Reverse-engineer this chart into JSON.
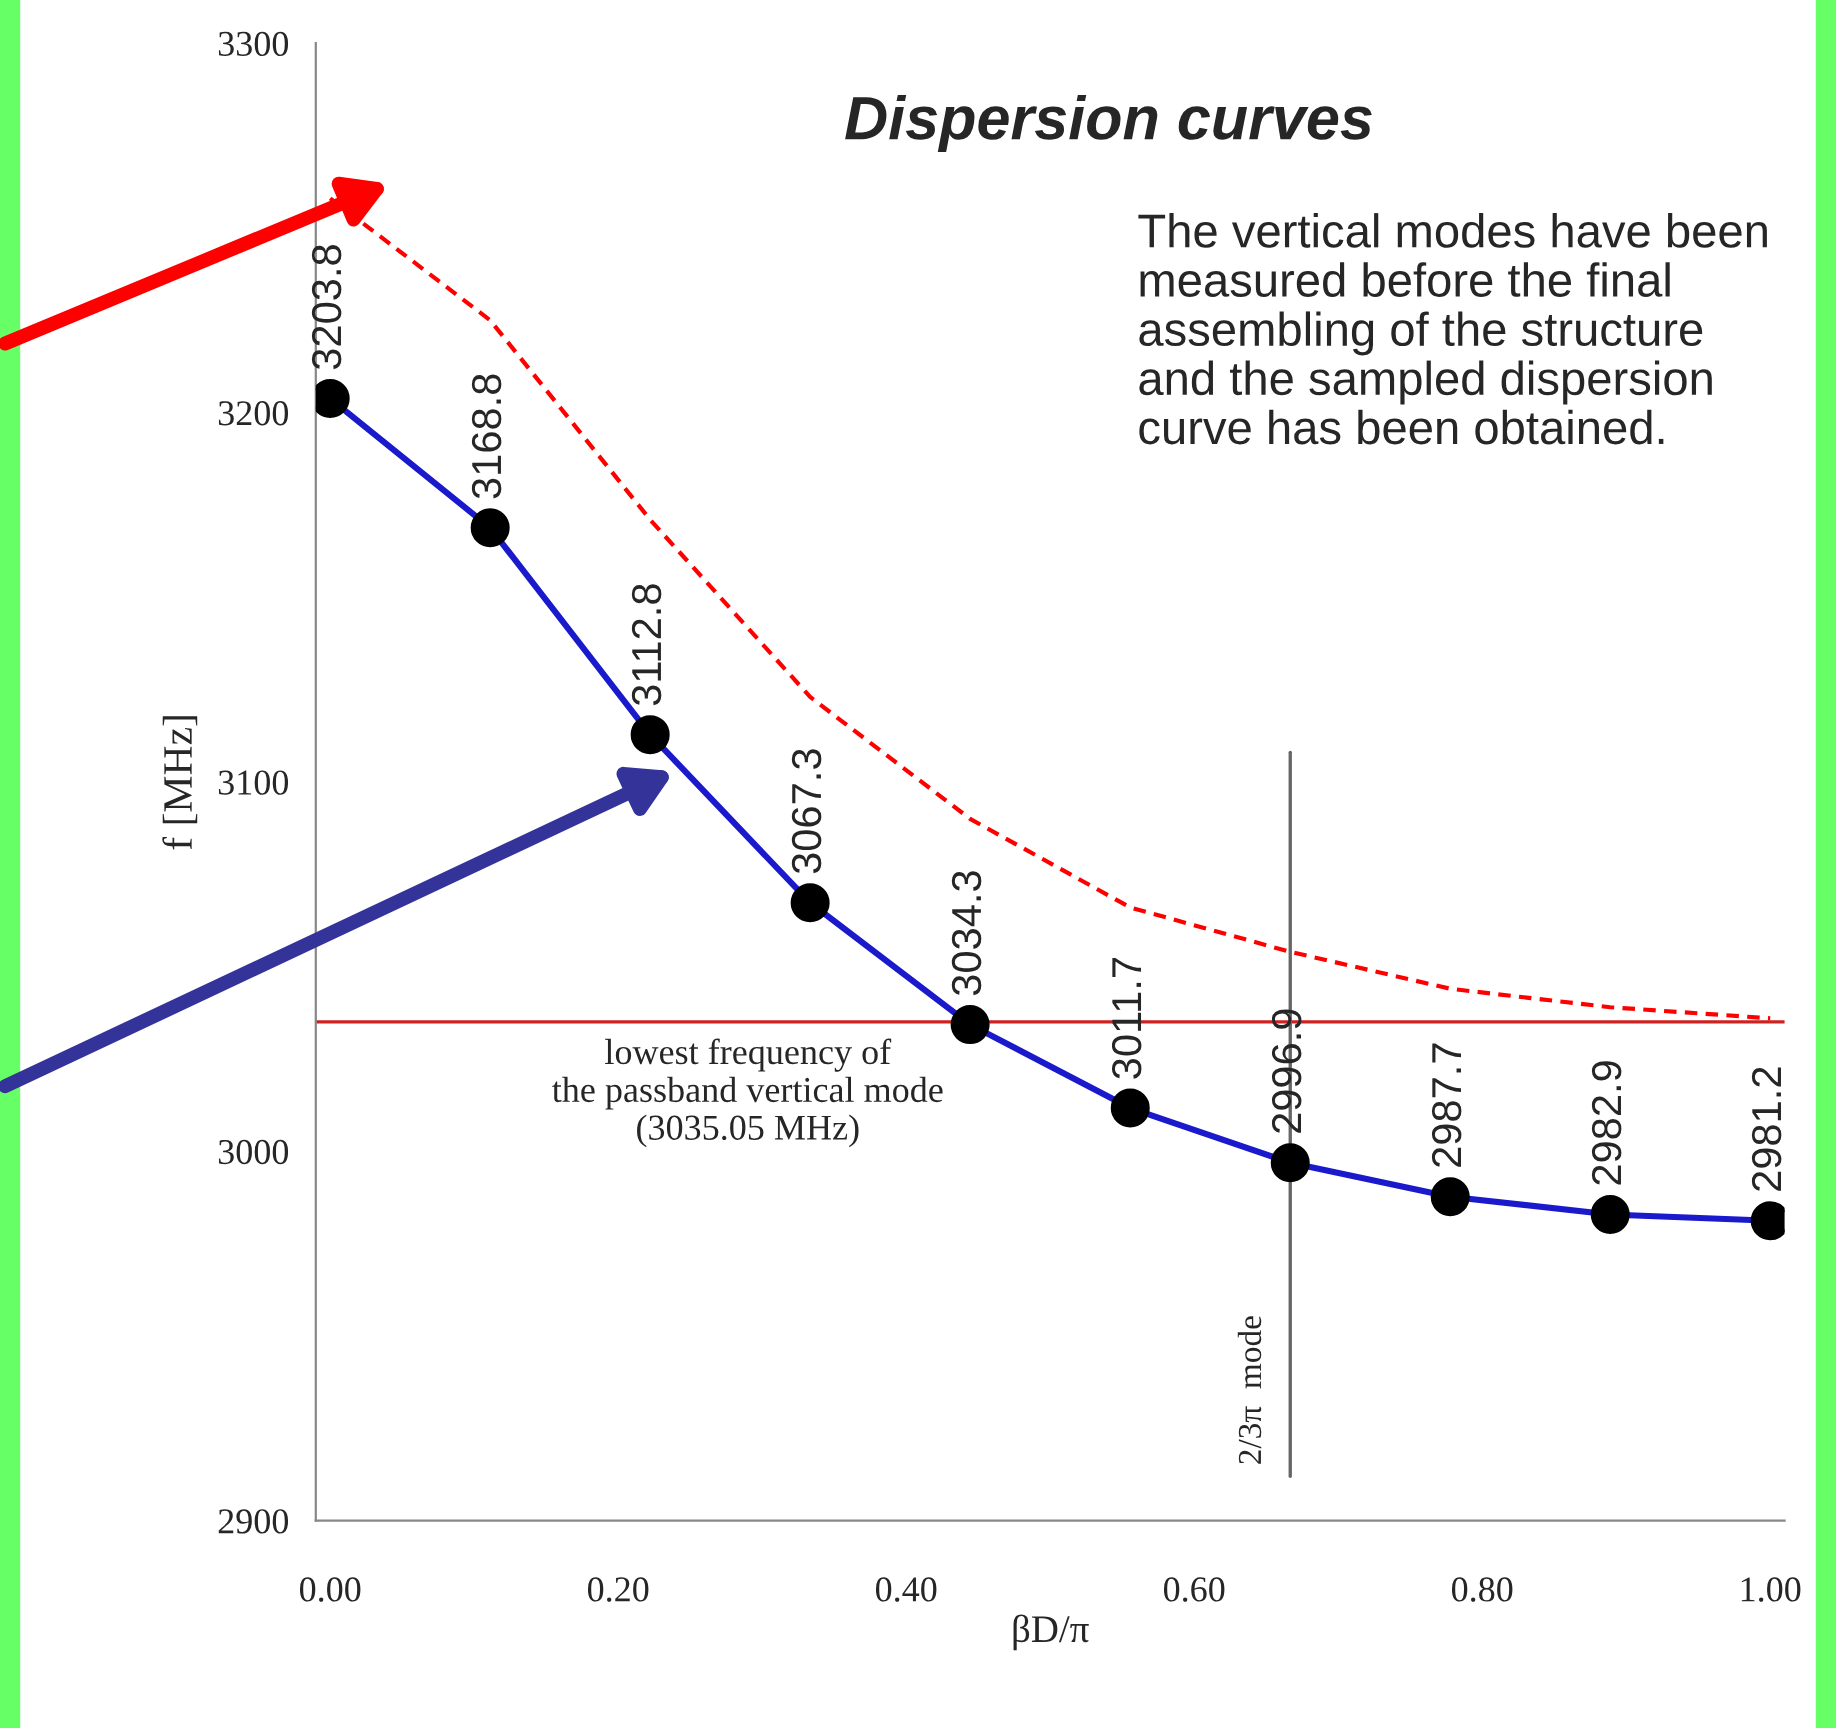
{
  "chart_data": {
    "type": "line",
    "title": "Dispersion curves",
    "xlabel": "βD/π",
    "ylabel": "f [MHz]",
    "xlim": [
      -0.01,
      1.01
    ],
    "ylim": [
      2900,
      3300
    ],
    "xticks": [
      {
        "value": 0,
        "label": "0.00"
      },
      {
        "value": 0.2,
        "label": "0.20"
      },
      {
        "value": 0.4,
        "label": "0.40"
      },
      {
        "value": 0.6,
        "label": "0.60"
      },
      {
        "value": 0.8,
        "label": "0.80"
      },
      {
        "value": 1,
        "label": "1.00"
      }
    ],
    "yticks": [
      2900,
      3000,
      3100,
      3200,
      3300
    ],
    "grid": false,
    "legend": false,
    "marker": "circle",
    "data_labels": true,
    "series": [
      {
        "x": [
          0,
          0.1111,
          0.2222,
          0.3333,
          0.4444,
          0.5556,
          0.6667,
          0.7778,
          0.8889,
          1.0
        ],
        "values": [
          3203.8,
          3168.8,
          3112.8,
          3067.3,
          3034.3,
          3011.7,
          2996.9,
          2987.7,
          2982.9,
          2981.2
        ],
        "color": "#1a1acc",
        "colors": [
          "#000000",
          "#000000",
          "#000000",
          "#000000",
          "#000000",
          "#000000",
          "#000000",
          "#000000",
          "#000000",
          "#000000"
        ],
        "line_style": "solid"
      },
      {
        "type": "line",
        "x": [
          0,
          0.1111,
          0.2222,
          0.3333,
          0.4444,
          0.5556,
          0.6667,
          0.7778,
          0.8889,
          1.0
        ],
        "values": [
          3258,
          3225,
          3171,
          3123,
          3090,
          3066,
          3054,
          3044,
          3039,
          3036
        ],
        "color": "#ff0000",
        "line_style": "dashed",
        "marker": "none",
        "data_labels": false
      }
    ],
    "ref_lines": [
      {
        "axis": "y",
        "value": 3035.05,
        "label": "lowest frequency of\nthe passband vertical mode\n(3035.05 MHz)",
        "color": "#cc2222",
        "line_style": "solid"
      },
      {
        "axis": "x",
        "value": 0.6667,
        "label": "2/3π  mode",
        "color": "#666666",
        "line_style": "solid"
      }
    ],
    "annotations": [
      "The vertical modes have been\nmeasured before the final\nassembling of the structure\nand the sampled dispersion\ncurve has been obtained."
    ]
  }
}
